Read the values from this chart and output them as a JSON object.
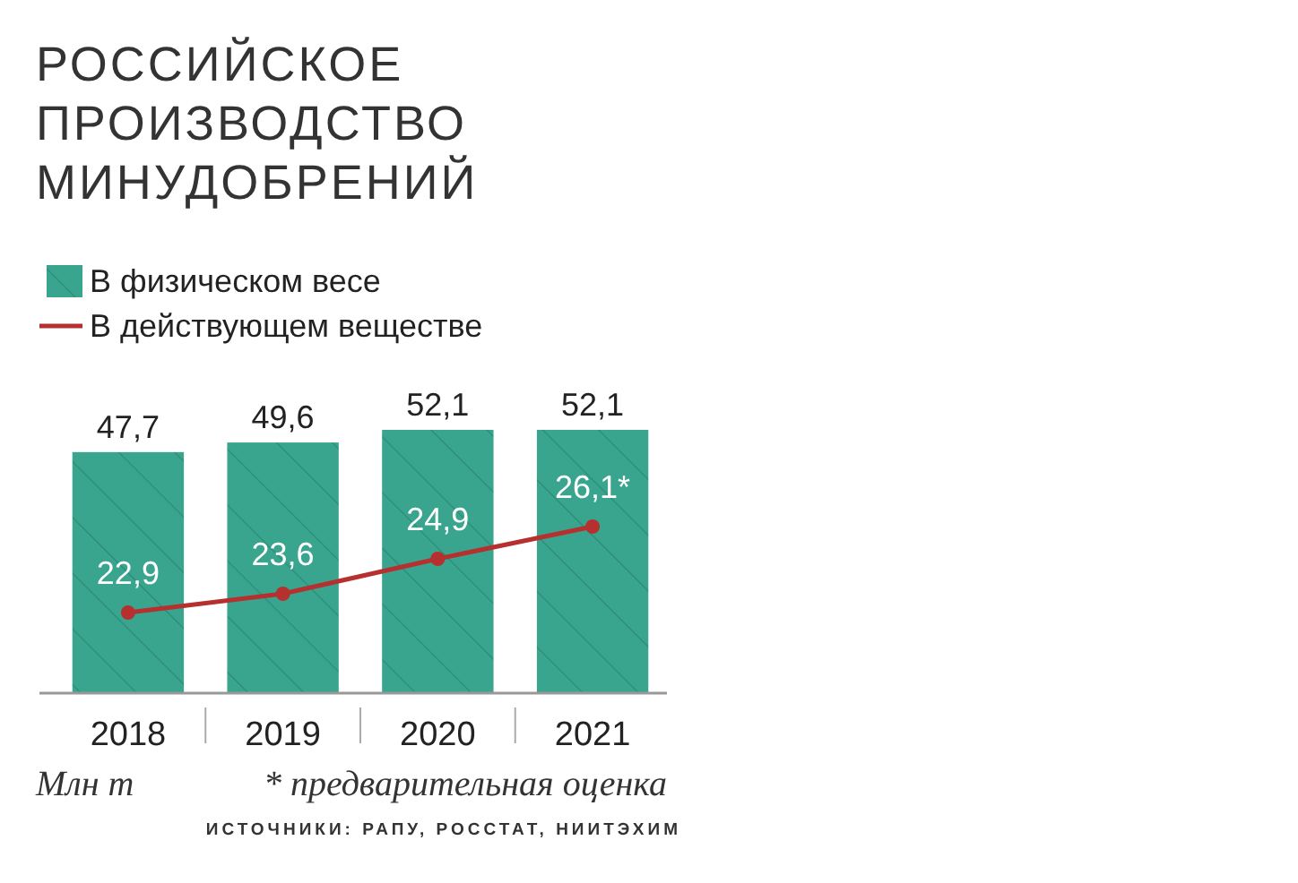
{
  "chart_data": {
    "type": "bar",
    "title": "РОССИЙСКОЕ ПРОИЗВОДСТВО МИНУДОБРЕНИЙ",
    "categories": [
      "2018",
      "2019",
      "2020",
      "2021"
    ],
    "series": [
      {
        "name": "В физическом весе",
        "color": "#3aa58e",
        "values": [
          47.7,
          49.6,
          52.1,
          52.1
        ],
        "value_labels": [
          "47,7",
          "49,6",
          "52,1",
          "52,1"
        ]
      },
      {
        "name": "В действующем веществе",
        "type": "line",
        "axis": "y2",
        "color": "#b5302e",
        "values": [
          22.9,
          23.6,
          24.9,
          26.1
        ],
        "value_labels": [
          "22,9",
          "23,6",
          "24,9",
          "26,1*"
        ]
      }
    ],
    "tick_labels": "x",
    "legend": "top left",
    "marker": "circle",
    "line_style": "solid",
    "data_labels": true,
    "annotations": [
      "Млн т",
      "* предварительная оценка",
      "ИСТОЧНИКИ: РАПУ, РОССТАТ, НИИТЭХИМ"
    ]
  }
}
